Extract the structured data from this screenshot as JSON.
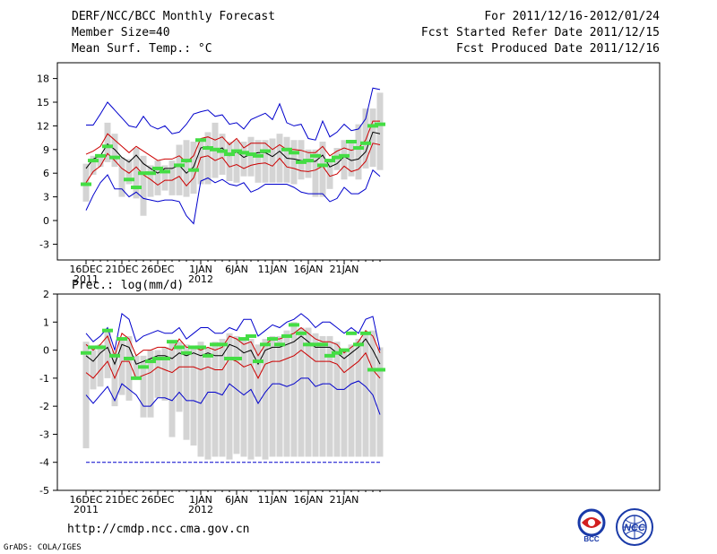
{
  "header": {
    "title": "DERF/NCC/BCC Monthly Forecast",
    "member_size": "Member Size=40",
    "variable": "Mean Surf. Temp.: °C",
    "for_range": "For 2011/12/16-2012/01/24",
    "fcst_started": "Fcst Started Refer Date 2011/12/15",
    "fcst_produced": "Fcst Produced Date 2011/12/16"
  },
  "footer": {
    "url": "http://cmdp.ncc.cma.gov.cn",
    "credit": "GrADS: COLA/IGES"
  },
  "logos": {
    "bcc": "BCC",
    "ncc": "NCC"
  },
  "colors": {
    "box": "#d4d4d4",
    "median": "#44dd44",
    "ens_mean": "#000000",
    "band": "#cc0000",
    "extreme": "#0000cc"
  },
  "chart_data": [
    {
      "type": "line",
      "name": "temperature",
      "title": "Mean Surf. Temp.: °C",
      "ylabel": "°C",
      "ylim": [
        -5,
        20
      ],
      "yticks": [
        -3,
        0,
        3,
        6,
        9,
        12,
        15,
        18
      ],
      "xticks": [
        {
          "day": 0,
          "label": "16DEC",
          "sub": "2011"
        },
        {
          "day": 5,
          "label": "21DEC",
          "sub": ""
        },
        {
          "day": 10,
          "label": "26DEC",
          "sub": ""
        },
        {
          "day": 16,
          "label": "1JAN",
          "sub": "2012"
        },
        {
          "day": 21,
          "label": "6JAN",
          "sub": ""
        },
        {
          "day": 26,
          "label": "11JAN",
          "sub": ""
        },
        {
          "day": 31,
          "label": "16JAN",
          "sub": ""
        },
        {
          "day": 36,
          "label": "21JAN",
          "sub": ""
        }
      ],
      "series": [
        {
          "name": "max",
          "values": [
            12.1,
            12.1,
            13.5,
            15.0,
            14.0,
            13.0,
            12.0,
            11.8,
            13.2,
            12.0,
            11.6,
            12.0,
            11.0,
            11.2,
            12.2,
            13.5,
            13.8,
            14.0,
            13.2,
            13.4,
            12.2,
            12.4,
            11.6,
            12.8,
            13.2,
            13.6,
            12.8,
            14.8,
            12.4,
            12.0,
            12.2,
            10.4,
            10.2,
            12.6,
            10.6,
            11.2,
            12.2,
            11.4,
            11.6,
            12.9,
            16.8,
            16.6
          ]
        },
        {
          "name": "upper",
          "values": [
            8.4,
            8.8,
            9.4,
            11.0,
            10.2,
            9.4,
            8.6,
            9.4,
            8.8,
            8.2,
            7.6,
            7.8,
            7.8,
            8.2,
            7.4,
            8.2,
            10.4,
            10.6,
            10.2,
            10.6,
            9.6,
            10.4,
            9.2,
            9.8,
            9.8,
            9.8,
            9.0,
            9.6,
            9.0,
            9.0,
            8.9,
            8.6,
            8.6,
            9.4,
            8.2,
            8.8,
            9.2,
            8.9,
            9.2,
            10.2,
            12.6,
            12.6
          ]
        },
        {
          "name": "mean",
          "values": [
            6.6,
            7.8,
            8.2,
            9.7,
            9.0,
            8.0,
            7.4,
            8.3,
            7.2,
            6.6,
            6.0,
            6.6,
            6.6,
            7.0,
            6.0,
            6.8,
            9.2,
            9.4,
            8.9,
            9.2,
            8.2,
            8.7,
            8.0,
            8.4,
            8.6,
            8.6,
            8.1,
            8.8,
            7.9,
            7.8,
            7.6,
            7.5,
            7.5,
            8.3,
            6.8,
            7.2,
            8.1,
            7.6,
            7.8,
            8.7,
            11.2,
            11.0
          ]
        },
        {
          "name": "lower",
          "values": [
            4.8,
            6.2,
            6.9,
            8.5,
            7.6,
            6.6,
            6.0,
            6.8,
            5.8,
            5.2,
            4.5,
            5.1,
            5.1,
            5.6,
            4.4,
            5.4,
            8.0,
            8.2,
            7.6,
            8.0,
            6.8,
            7.1,
            6.6,
            7.0,
            7.2,
            7.3,
            6.9,
            7.9,
            6.8,
            6.6,
            6.3,
            6.2,
            6.4,
            6.9,
            5.6,
            5.9,
            6.9,
            6.2,
            6.5,
            7.5,
            9.8,
            9.6
          ]
        },
        {
          "name": "min",
          "values": [
            1.3,
            3.2,
            4.8,
            5.8,
            4.0,
            4.0,
            3.0,
            3.6,
            2.8,
            2.6,
            2.4,
            2.6,
            2.6,
            2.4,
            0.6,
            -0.4,
            5.0,
            5.4,
            4.8,
            5.2,
            4.6,
            4.4,
            4.8,
            3.6,
            4.0,
            4.6,
            4.6,
            4.6,
            4.6,
            4.2,
            3.6,
            3.4,
            3.4,
            3.4,
            2.4,
            2.8,
            4.2,
            3.4,
            3.4,
            4.0,
            6.4,
            5.6
          ]
        },
        {
          "name": "box_top",
          "values": [
            7.2,
            8.2,
            8.4,
            12.4,
            11.0,
            8.0,
            7.8,
            9.2,
            8.2,
            7.0,
            7.6,
            7.0,
            7.6,
            9.6,
            10.2,
            10.0,
            10.2,
            11.2,
            12.4,
            11.0,
            10.0,
            10.2,
            10.0,
            10.6,
            10.2,
            10.2,
            10.4,
            11.0,
            10.6,
            10.2,
            10.2,
            9.0,
            9.0,
            10.0,
            7.8,
            9.2,
            10.2,
            10.0,
            12.2,
            14.2,
            14.2,
            16.2
          ]
        },
        {
          "name": "box_bottom",
          "values": [
            2.4,
            5.8,
            6.8,
            7.4,
            6.8,
            3.0,
            4.6,
            2.8,
            0.6,
            3.0,
            3.2,
            3.8,
            3.2,
            3.2,
            3.0,
            3.4,
            4.6,
            4.6,
            5.4,
            5.8,
            5.0,
            4.8,
            5.6,
            5.6,
            4.8,
            4.8,
            4.8,
            4.8,
            4.8,
            4.6,
            5.2,
            5.4,
            3.0,
            3.0,
            4.0,
            6.4,
            5.2,
            5.6,
            5.2,
            6.6,
            6.8,
            6.4
          ]
        },
        {
          "name": "median",
          "values": [
            4.6,
            7.6,
            8.2,
            9.4,
            8.0,
            null,
            5.2,
            4.2,
            6.0,
            6.0,
            6.6,
            6.2,
            null,
            7.0,
            7.6,
            6.4,
            10.2,
            9.2,
            9.0,
            8.8,
            8.4,
            8.8,
            8.6,
            8.4,
            8.2,
            8.8,
            null,
            null,
            9.0,
            8.6,
            7.4,
            7.6,
            8.2,
            7.0,
            7.6,
            8.0,
            8.2,
            10.0,
            9.2,
            9.8,
            12.0,
            12.2
          ]
        }
      ]
    },
    {
      "type": "line",
      "name": "precipitation",
      "title": "Prec.: log(mm/d)",
      "ylabel": "log(mm/d)",
      "ylim": [
        -5,
        2
      ],
      "yticks": [
        -5,
        -4,
        -3,
        -2,
        -1,
        0,
        1,
        2
      ],
      "xticks": [
        {
          "day": 0,
          "label": "16DEC",
          "sub": "2011"
        },
        {
          "day": 5,
          "label": "21DEC",
          "sub": ""
        },
        {
          "day": 10,
          "label": "26DEC",
          "sub": ""
        },
        {
          "day": 16,
          "label": "1JAN",
          "sub": "2012"
        },
        {
          "day": 21,
          "label": "6JAN",
          "sub": ""
        },
        {
          "day": 26,
          "label": "11JAN",
          "sub": ""
        },
        {
          "day": 31,
          "label": "16JAN",
          "sub": ""
        },
        {
          "day": 36,
          "label": "21JAN",
          "sub": ""
        }
      ],
      "series": [
        {
          "name": "max",
          "values": [
            0.6,
            0.3,
            0.5,
            0.8,
            0.0,
            1.3,
            1.1,
            0.3,
            0.5,
            0.6,
            0.7,
            0.6,
            0.6,
            0.8,
            0.4,
            0.6,
            0.8,
            0.8,
            0.6,
            0.6,
            0.8,
            0.7,
            1.1,
            1.1,
            0.5,
            0.7,
            0.9,
            0.8,
            1.0,
            1.1,
            1.3,
            1.1,
            0.8,
            1.0,
            1.0,
            0.8,
            0.6,
            0.8,
            0.6,
            1.1,
            1.2,
            0.0
          ]
        },
        {
          "name": "upper",
          "values": [
            0.2,
            0.0,
            0.2,
            0.5,
            -0.2,
            0.6,
            0.4,
            -0.2,
            0.0,
            0.0,
            0.1,
            0.1,
            0.0,
            0.4,
            0.1,
            0.1,
            0.0,
            0.1,
            0.0,
            0.1,
            0.5,
            0.4,
            0.2,
            0.3,
            -0.2,
            0.2,
            0.4,
            0.4,
            0.5,
            0.6,
            0.8,
            0.6,
            0.4,
            0.3,
            0.3,
            0.2,
            -0.1,
            0.1,
            0.3,
            0.7,
            0.5,
            -0.1
          ]
        },
        {
          "name": "mean",
          "values": [
            -0.2,
            -0.4,
            -0.1,
            0.1,
            -0.5,
            0.2,
            0.1,
            -0.5,
            -0.4,
            -0.3,
            -0.2,
            -0.2,
            -0.3,
            -0.1,
            -0.2,
            -0.1,
            -0.2,
            -0.1,
            -0.2,
            -0.2,
            0.2,
            0.1,
            -0.1,
            0.0,
            -0.5,
            0.0,
            0.1,
            0.1,
            0.2,
            0.3,
            0.5,
            0.3,
            0.1,
            0.1,
            0.1,
            -0.1,
            -0.3,
            -0.1,
            0.1,
            0.4,
            0.0,
            -0.5
          ]
        },
        {
          "name": "lower",
          "values": [
            -0.8,
            -1.0,
            -0.7,
            -0.4,
            -1.0,
            -0.4,
            -0.4,
            -1.0,
            -0.9,
            -0.8,
            -0.6,
            -0.7,
            -0.8,
            -0.6,
            -0.6,
            -0.6,
            -0.7,
            -0.6,
            -0.7,
            -0.7,
            -0.3,
            -0.4,
            -0.6,
            -0.5,
            -1.0,
            -0.5,
            -0.4,
            -0.4,
            -0.3,
            -0.2,
            0.0,
            -0.2,
            -0.4,
            -0.4,
            -0.4,
            -0.5,
            -0.8,
            -0.6,
            -0.4,
            -0.1,
            -0.7,
            -1.0
          ]
        },
        {
          "name": "min",
          "values": [
            -1.6,
            -1.9,
            -1.6,
            -1.3,
            -1.8,
            -1.2,
            -1.4,
            -1.6,
            -2.0,
            -2.0,
            -1.7,
            -1.7,
            -1.8,
            -1.5,
            -1.8,
            -1.8,
            -1.9,
            -1.5,
            -1.5,
            -1.6,
            -1.2,
            -1.4,
            -1.6,
            -1.4,
            -1.9,
            -1.5,
            -1.2,
            -1.2,
            -1.3,
            -1.2,
            -1.0,
            -1.0,
            -1.3,
            -1.2,
            -1.2,
            -1.4,
            -1.4,
            -1.2,
            -1.1,
            -1.3,
            -1.6,
            -2.3
          ]
        },
        {
          "name": "box_top",
          "values": [
            0.3,
            0.0,
            0.2,
            0.7,
            0.0,
            0.4,
            0.5,
            -0.2,
            -0.2,
            0.0,
            0.0,
            0.1,
            0.3,
            0.3,
            0.2,
            0.1,
            0.3,
            0.1,
            0.3,
            0.4,
            0.6,
            0.5,
            0.4,
            0.4,
            0.2,
            0.4,
            0.5,
            0.5,
            0.7,
            1.0,
            0.8,
            0.8,
            0.6,
            0.5,
            0.5,
            0.3,
            0.0,
            0.2,
            0.4,
            0.6,
            0.7,
            0.1
          ]
        },
        {
          "name": "box_bottom",
          "values": [
            -3.5,
            -1.4,
            -1.3,
            -1.0,
            -2.0,
            -1.6,
            -1.8,
            -1.0,
            -2.4,
            -2.4,
            -1.7,
            -1.8,
            -3.1,
            -2.2,
            -3.2,
            -3.4,
            -3.8,
            -3.9,
            -3.8,
            -3.8,
            -3.9,
            -3.7,
            -3.8,
            -3.9,
            -3.8,
            -3.9,
            -3.8,
            -3.8,
            -3.8,
            -3.8,
            -3.8,
            -3.8,
            -3.8,
            -3.8,
            -3.8,
            -3.8,
            -3.8,
            -3.8,
            -3.8,
            -3.8,
            -3.8,
            -3.8
          ]
        },
        {
          "name": "median",
          "values": [
            -0.1,
            0.1,
            0.1,
            0.7,
            -0.2,
            0.4,
            -0.3,
            -1.0,
            -0.6,
            -0.4,
            -0.3,
            -0.3,
            0.3,
            0.1,
            -0.1,
            0.1,
            0.1,
            -0.2,
            0.2,
            0.2,
            -0.3,
            -0.3,
            0.4,
            0.5,
            -0.4,
            0.2,
            0.4,
            0.2,
            0.5,
            0.9,
            0.6,
            0.2,
            0.2,
            0.2,
            -0.2,
            -0.1,
            0.0,
            0.6,
            0.2,
            0.6,
            -0.7,
            -0.7
          ]
        },
        {
          "name": "floor",
          "values": [
            -4.0,
            -4.0,
            -4.0,
            -4.0,
            -4.0,
            -4.0,
            -4.0,
            -4.0,
            -4.0,
            -4.0,
            -4.0,
            -4.0,
            -4.0,
            -4.0,
            -4.0,
            -4.0,
            -4.0,
            -4.0,
            -4.0,
            -4.0,
            -4.0,
            -4.0,
            -4.0,
            -4.0,
            -4.0,
            -4.0,
            -4.0,
            -4.0,
            -4.0,
            -4.0,
            -4.0,
            -4.0,
            -4.0,
            -4.0,
            -4.0,
            -4.0,
            -4.0,
            -4.0,
            -4.0,
            -4.0,
            -4.0,
            -4.0
          ]
        }
      ]
    }
  ]
}
